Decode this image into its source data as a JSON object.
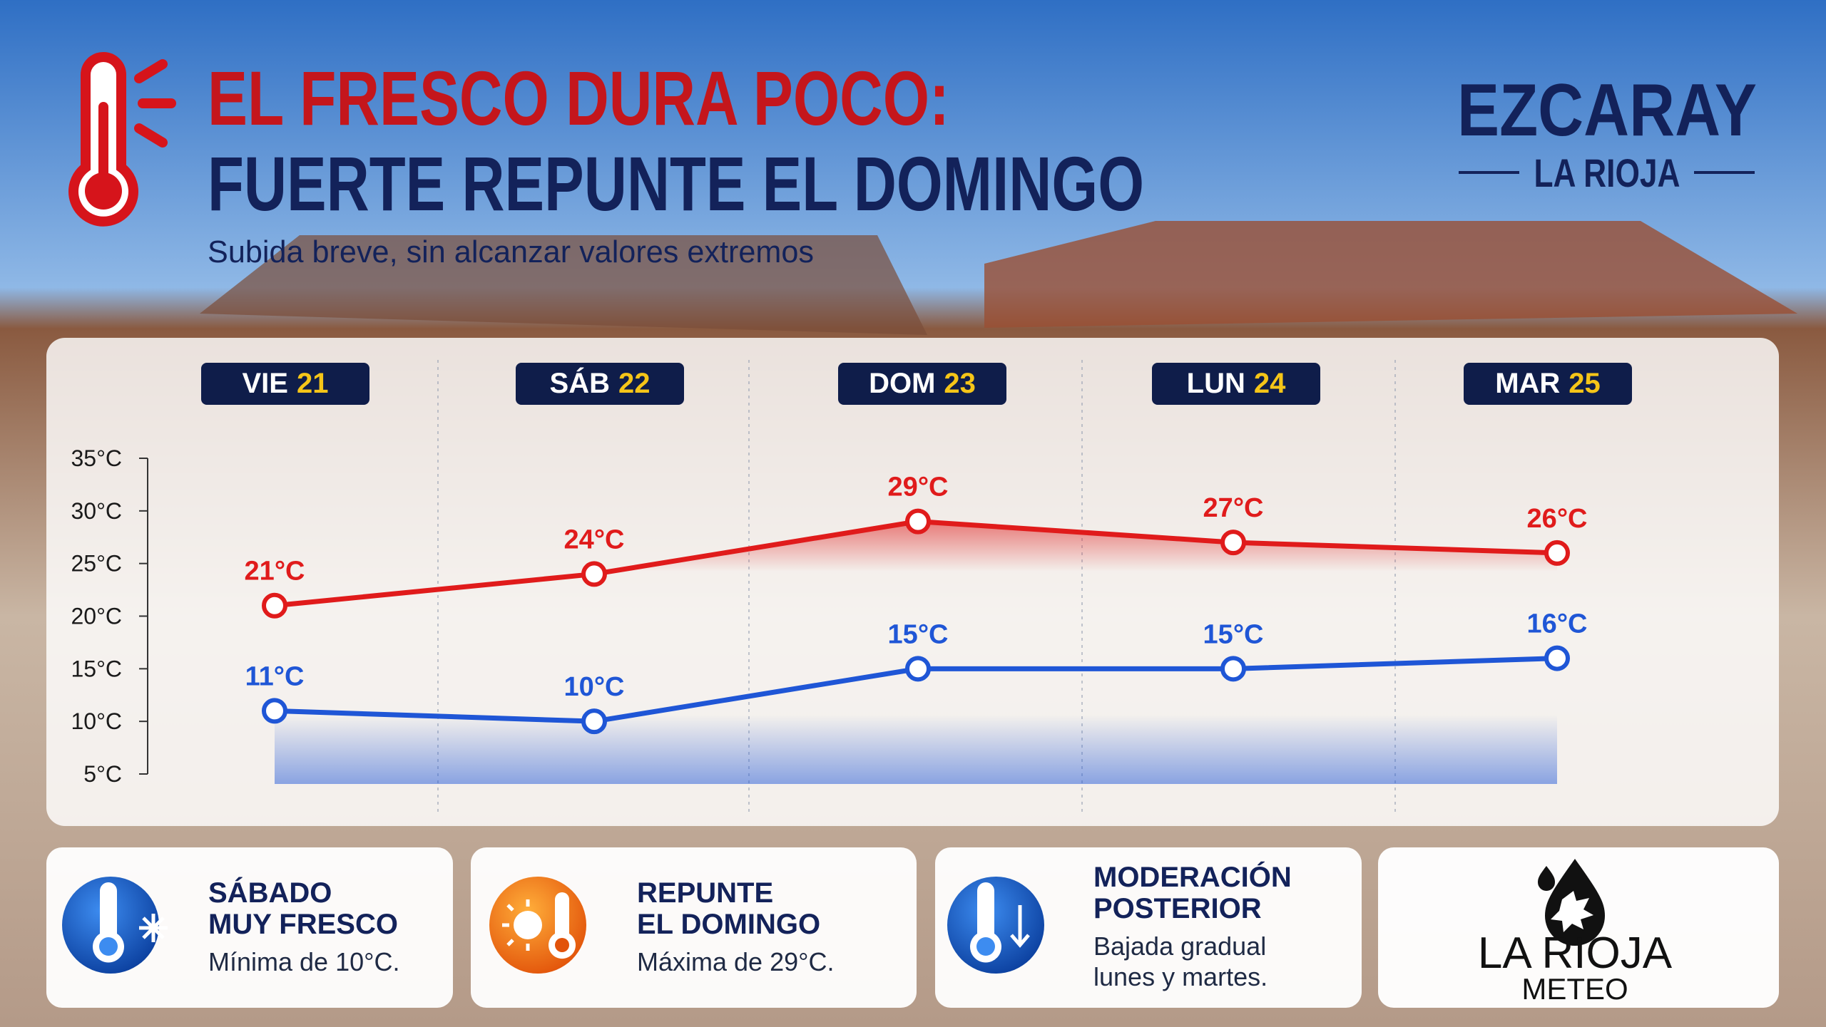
{
  "header": {
    "title_lines": [
      "EL FRESCO DURA POCO:",
      "FUERTE REPUNTE EL DOMINGO"
    ],
    "subtitle": "Subida breve, sin alcanzar valores extremos",
    "place": "EZCARAY",
    "region": "LA RIOJA"
  },
  "chart_data": {
    "type": "line",
    "categories": [
      "VIE",
      "SÁB",
      "DOM",
      "LUN",
      "MAR"
    ],
    "category_dates": [
      "21",
      "22",
      "23",
      "24",
      "25"
    ],
    "series": [
      {
        "color": "#e01b1b",
        "values": [
          21,
          24,
          29,
          27,
          26
        ],
        "value_labels": [
          "21°C",
          "24°C",
          "29°C",
          "27°C",
          "26°C"
        ]
      },
      {
        "color": "#1f56d6",
        "values": [
          11,
          10,
          15,
          15,
          16
        ],
        "value_labels": [
          "11°C",
          "10°C",
          "15°C",
          "15°C",
          "16°C"
        ]
      }
    ],
    "ylim": [
      5,
      35
    ],
    "yticks": [
      {
        "value": 5,
        "label": "5°C"
      },
      {
        "value": 10,
        "label": "10°C"
      },
      {
        "value": 15,
        "label": "15°C"
      },
      {
        "value": 20,
        "label": "20°C"
      },
      {
        "value": 25,
        "label": "25°C"
      },
      {
        "value": 30,
        "label": "30°C"
      },
      {
        "value": 35,
        "label": "35°C"
      }
    ]
  },
  "cards": [
    {
      "title_lines": [
        "SÁBADO",
        "MUY FRESCO"
      ],
      "text_lines": [
        "Mínima de 10°C."
      ]
    },
    {
      "title_lines": [
        "REPUNTE",
        "EL DOMINGO"
      ],
      "text_lines": [
        "Máxima de 29°C."
      ]
    },
    {
      "title_lines": [
        "MODERACIÓN",
        "POSTERIOR"
      ],
      "text_lines": [
        "Bajada gradual",
        "lunes y martes."
      ]
    }
  ],
  "logo": {
    "name": "LA RIOJA",
    "sub": "METEO"
  }
}
